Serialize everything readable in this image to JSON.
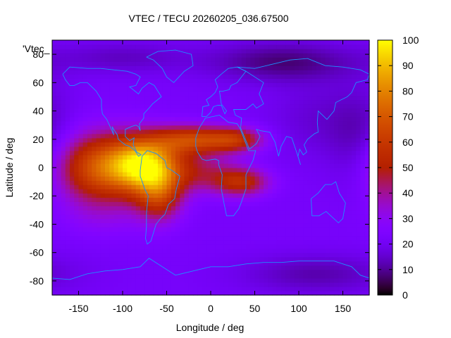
{
  "chart_data": {
    "type": "heatmap",
    "title": "VTEC / TECU 20260205_036.67500",
    "xlabel": "Longitude / deg",
    "ylabel": "Latitude / deg",
    "xlim": [
      -180,
      180
    ],
    "ylim": [
      -90,
      90
    ],
    "x_ticks": [
      -150,
      -100,
      -50,
      0,
      50,
      100,
      150
    ],
    "y_ticks": [
      -80,
      -60,
      -40,
      -20,
      0,
      20,
      40,
      60,
      80
    ],
    "colorbar": {
      "range": [
        0,
        100
      ],
      "ticks": [
        0,
        10,
        20,
        30,
        40,
        50,
        60,
        70,
        80,
        90,
        100
      ]
    },
    "key_label": "'Vtec_",
    "series_name": "VTEC (TECU)",
    "background_level": 22,
    "features": [
      {
        "name": "equatorial-anomaly-americas-core",
        "lon": -75,
        "lat": 2,
        "lon_sigma": 28,
        "lat_sigma": 14,
        "peak": 70
      },
      {
        "name": "eastern-pacific-plume",
        "lon": -130,
        "lat": 0,
        "lon_sigma": 32,
        "lat_sigma": 17,
        "peak": 42
      },
      {
        "name": "south-american-lobe",
        "lon": -58,
        "lat": -20,
        "lon_sigma": 18,
        "lat_sigma": 13,
        "peak": 30
      },
      {
        "name": "atlantic-northern-crest",
        "lon": -20,
        "lat": 20,
        "lon_sigma": 30,
        "lat_sigma": 7,
        "peak": 38
      },
      {
        "name": "north-african-crest",
        "lon": 30,
        "lat": 20,
        "lon_sigma": 22,
        "lat_sigma": 6,
        "peak": 30
      },
      {
        "name": "southern-african-crest",
        "lon": 35,
        "lat": -10,
        "lon_sigma": 22,
        "lat_sigma": 7,
        "peak": 30
      },
      {
        "name": "atlantic-equator-band",
        "lon": -10,
        "lat": -3,
        "lon_sigma": 30,
        "lat_sigma": 10,
        "peak": 18
      },
      {
        "name": "south-pacific-high",
        "lon": -120,
        "lat": -35,
        "lon_sigma": 35,
        "lat_sigma": 10,
        "peak": 6
      },
      {
        "name": "arctic-low-east",
        "lon": 80,
        "lat": 75,
        "lon_sigma": 60,
        "lat_sigma": 10,
        "peak": -14
      },
      {
        "name": "arctic-low-west",
        "lon": -100,
        "lat": 78,
        "lon_sigma": 50,
        "lat_sigma": 8,
        "peak": -8
      },
      {
        "name": "antarctic-low",
        "lon": 120,
        "lat": -75,
        "lon_sigma": 60,
        "lat_sigma": 10,
        "peak": -10
      },
      {
        "name": "pacific-night-low",
        "lon": 170,
        "lat": 20,
        "lon_sigma": 25,
        "lat_sigma": 25,
        "peak": -8
      },
      {
        "name": "asia-night-low",
        "lon": 120,
        "lat": 35,
        "lon_sigma": 40,
        "lat_sigma": 20,
        "peak": -6
      }
    ],
    "colors": {
      "line_color": "#1e90ff",
      "frame_color": "#000000"
    }
  }
}
